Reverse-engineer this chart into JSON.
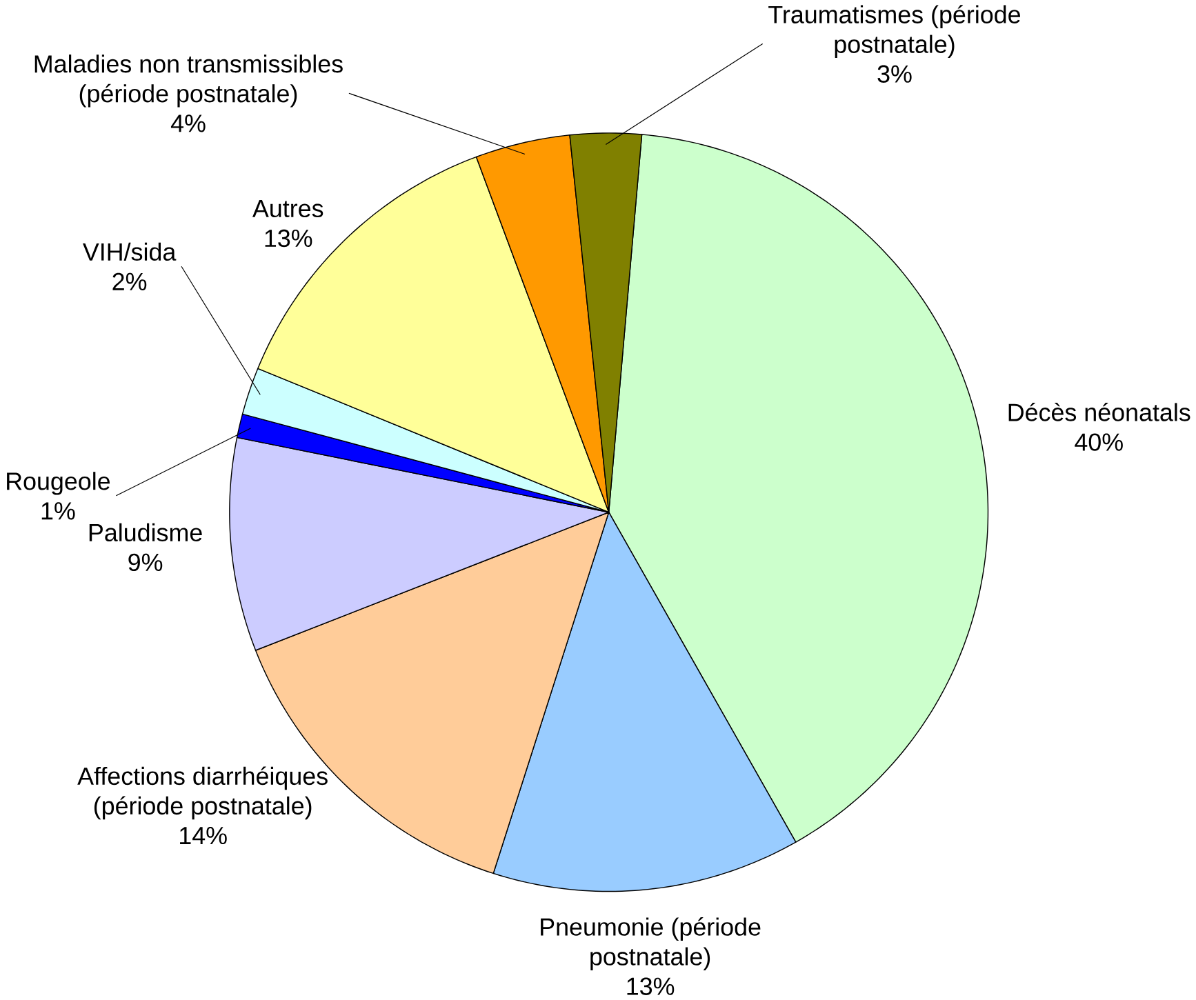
{
  "chart_data": {
    "type": "pie",
    "categories": [
      "Décès néonatals",
      "Pneumonie (période postnatale)",
      "Affections diarrhéiques (période postnatale)",
      "Paludisme",
      "Rougeole",
      "VIH/sida",
      "Autres",
      "Maladies non transmissibles (période postnatale)",
      "Traumatismes (période postnatale)"
    ],
    "values": [
      40,
      13,
      14,
      9,
      1,
      2,
      13,
      4,
      3
    ],
    "value_labels": [
      "40%",
      "13%",
      "14%",
      "9%",
      "1%",
      "2%",
      "13%",
      "4%",
      "3%"
    ],
    "colors": [
      "#ccffcc",
      "#99ccff",
      "#ffcc99",
      "#ccccff",
      "#0000ff",
      "#ccffff",
      "#ffff99",
      "#ff9900",
      "#808000"
    ]
  }
}
